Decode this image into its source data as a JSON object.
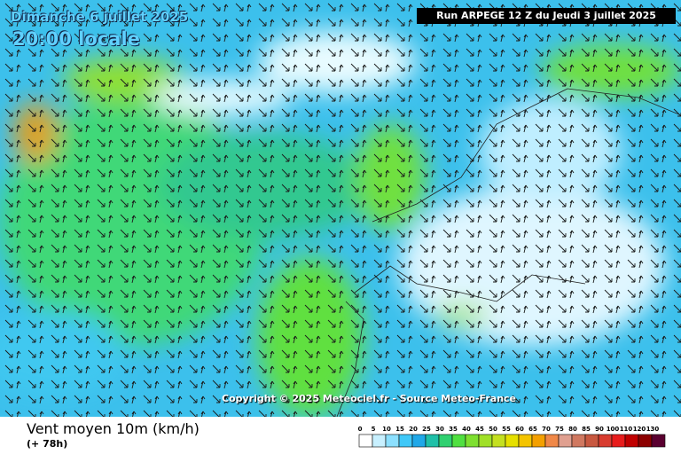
{
  "header": {
    "date": "Dimanche 6 juillet 2025",
    "time": "20:00 locale",
    "run": "Run ARPEGE 12 Z du Jeudi 3 juillet 2025"
  },
  "map": {
    "copyright": "Copyright © 2025 Meteociel.fr - Source Meteo-France"
  },
  "footer": {
    "title": "Vent moyen 10m (km/h)",
    "lead": "(+ 78h)"
  },
  "legend": {
    "ticks": [
      "0",
      "5",
      "10",
      "15",
      "20",
      "25",
      "30",
      "35",
      "40",
      "45",
      "50",
      "55",
      "60",
      "65",
      "70",
      "75",
      "80",
      "85",
      "90",
      "100",
      "110",
      "120",
      "130"
    ],
    "colors": [
      "#ffffff",
      "#c8f0ff",
      "#8ce0ff",
      "#40c8f8",
      "#20a8e8",
      "#20c0a8",
      "#30d070",
      "#50e040",
      "#7ee030",
      "#a0e028",
      "#c4e020",
      "#e6e000",
      "#f4c400",
      "#f4a000",
      "#f08848",
      "#e0a090",
      "#d07860",
      "#c85840",
      "#d83c30",
      "#e81c1c",
      "#c00000",
      "#8c0000",
      "#5a0030"
    ]
  }
}
